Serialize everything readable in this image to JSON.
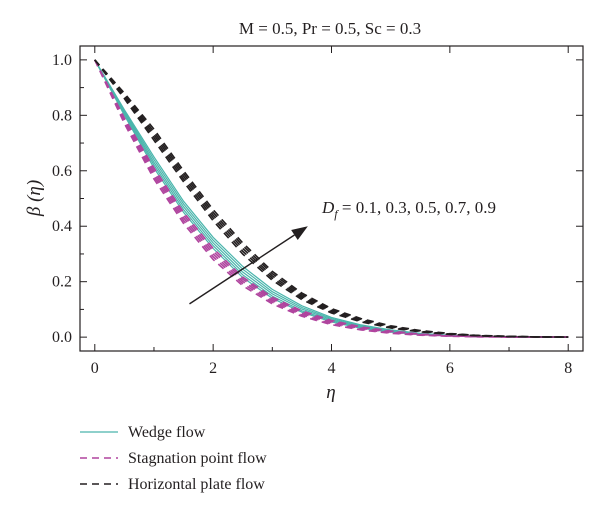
{
  "chart_data": {
    "type": "line",
    "title": "M = 0.5, Pr = 0.5, Sc = 0.3",
    "xlabel": "η",
    "ylabel": "β (η)",
    "xlim": [
      -0.25,
      8.25
    ],
    "ylim": [
      -0.05,
      1.05
    ],
    "xticks": [
      0,
      2,
      4,
      6,
      8
    ],
    "yticks": [
      0.0,
      0.2,
      0.4,
      0.6,
      0.8,
      1.0
    ],
    "xtick_labels": [
      "0",
      "2",
      "4",
      "6",
      "8"
    ],
    "ytick_labels": [
      "0.0",
      "0.2",
      "0.4",
      "0.6",
      "0.8",
      "1.0"
    ],
    "grid": false,
    "legend_position": "below",
    "annotation": {
      "text_main": "D",
      "text_sub": "f",
      "text_rest": " = 0.1, 0.3, 0.5, 0.7, 0.9"
    },
    "df_values": [
      0.1,
      0.3,
      0.5,
      0.7,
      0.9
    ],
    "colors": {
      "wedge": "#4ab5ac",
      "stagnation": "#b0449e",
      "horizontal": "#231f20"
    },
    "groups": [
      {
        "name": "Wedge flow",
        "style": "solid",
        "color": "#4ab5ac",
        "x": [
          0,
          0.5,
          1,
          1.5,
          2,
          2.5,
          3,
          3.5,
          4,
          4.5,
          5,
          5.5,
          6,
          6.5,
          7,
          7.5,
          8
        ],
        "series": [
          {
            "df": 0.1,
            "y": [
              1.0,
              0.8,
              0.61,
              0.45,
              0.32,
              0.215,
              0.14,
              0.09,
              0.055,
              0.032,
              0.018,
              0.009,
              0.004,
              0.002,
              0.001,
              0.0,
              0.0
            ]
          },
          {
            "df": 0.3,
            "y": [
              1.0,
              0.805,
              0.62,
              0.46,
              0.33,
              0.225,
              0.148,
              0.095,
              0.059,
              0.035,
              0.02,
              0.01,
              0.005,
              0.002,
              0.001,
              0.0,
              0.0
            ]
          },
          {
            "df": 0.5,
            "y": [
              1.0,
              0.81,
              0.63,
              0.47,
              0.34,
              0.235,
              0.156,
              0.101,
              0.063,
              0.038,
              0.022,
              0.011,
              0.005,
              0.003,
              0.001,
              0.0,
              0.0
            ]
          },
          {
            "df": 0.7,
            "y": [
              1.0,
              0.815,
              0.64,
              0.48,
              0.35,
              0.245,
              0.164,
              0.107,
              0.067,
              0.041,
              0.024,
              0.012,
              0.006,
              0.003,
              0.001,
              0.0,
              0.0
            ]
          },
          {
            "df": 0.9,
            "y": [
              1.0,
              0.82,
              0.65,
              0.49,
              0.36,
              0.255,
              0.172,
              0.113,
              0.071,
              0.044,
              0.026,
              0.014,
              0.007,
              0.003,
              0.001,
              0.0,
              0.0
            ]
          }
        ]
      },
      {
        "name": "Stagnation point flow",
        "style": "dashed",
        "color": "#b0449e",
        "x": [
          0,
          0.5,
          1,
          1.5,
          2,
          2.5,
          3,
          3.5,
          4,
          4.5,
          5,
          5.5,
          6,
          6.5,
          7,
          7.5,
          8
        ],
        "series": [
          {
            "df": 0.1,
            "y": [
              1.0,
              0.77,
              0.57,
              0.41,
              0.28,
              0.185,
              0.12,
              0.075,
              0.045,
              0.026,
              0.014,
              0.007,
              0.003,
              0.001,
              0.0,
              0.0,
              0.0
            ]
          },
          {
            "df": 0.3,
            "y": [
              1.0,
              0.775,
              0.58,
              0.42,
              0.29,
              0.193,
              0.126,
              0.08,
              0.048,
              0.028,
              0.016,
              0.008,
              0.004,
              0.002,
              0.001,
              0.0,
              0.0
            ]
          },
          {
            "df": 0.5,
            "y": [
              1.0,
              0.78,
              0.59,
              0.43,
              0.3,
              0.201,
              0.132,
              0.085,
              0.052,
              0.031,
              0.018,
              0.009,
              0.004,
              0.002,
              0.001,
              0.0,
              0.0
            ]
          },
          {
            "df": 0.7,
            "y": [
              1.0,
              0.785,
              0.6,
              0.44,
              0.31,
              0.209,
              0.138,
              0.09,
              0.056,
              0.034,
              0.02,
              0.01,
              0.005,
              0.002,
              0.001,
              0.0,
              0.0
            ]
          },
          {
            "df": 0.9,
            "y": [
              1.0,
              0.79,
              0.61,
              0.45,
              0.32,
              0.217,
              0.144,
              0.095,
              0.06,
              0.037,
              0.022,
              0.011,
              0.005,
              0.002,
              0.001,
              0.0,
              0.0
            ]
          }
        ]
      },
      {
        "name": "Horizontal plate flow",
        "style": "dashed",
        "color": "#231f20",
        "x": [
          0,
          0.5,
          1,
          1.5,
          2,
          2.5,
          3,
          3.5,
          4,
          4.5,
          5,
          5.5,
          6,
          6.5,
          7,
          7.5,
          8
        ],
        "series": [
          {
            "df": 0.1,
            "y": [
              1.0,
              0.86,
              0.71,
              0.56,
              0.42,
              0.3,
              0.205,
              0.135,
              0.087,
              0.055,
              0.033,
              0.019,
              0.01,
              0.005,
              0.002,
              0.001,
              0.0
            ]
          },
          {
            "df": 0.3,
            "y": [
              1.0,
              0.865,
              0.72,
              0.57,
              0.43,
              0.31,
              0.213,
              0.141,
              0.091,
              0.058,
              0.035,
              0.02,
              0.011,
              0.005,
              0.002,
              0.001,
              0.0
            ]
          },
          {
            "df": 0.5,
            "y": [
              1.0,
              0.87,
              0.73,
              0.58,
              0.44,
              0.32,
              0.221,
              0.147,
              0.095,
              0.061,
              0.037,
              0.021,
              0.011,
              0.006,
              0.002,
              0.001,
              0.0
            ]
          },
          {
            "df": 0.7,
            "y": [
              1.0,
              0.875,
              0.74,
              0.59,
              0.45,
              0.33,
              0.229,
              0.153,
              0.099,
              0.064,
              0.039,
              0.022,
              0.012,
              0.006,
              0.003,
              0.001,
              0.0
            ]
          },
          {
            "df": 0.9,
            "y": [
              1.0,
              0.88,
              0.75,
              0.6,
              0.46,
              0.34,
              0.237,
              0.159,
              0.103,
              0.067,
              0.041,
              0.024,
              0.013,
              0.006,
              0.003,
              0.001,
              0.0
            ]
          }
        ]
      }
    ],
    "arrow": {
      "from": [
        1.6,
        0.12
      ],
      "to": [
        3.6,
        0.4
      ]
    }
  }
}
